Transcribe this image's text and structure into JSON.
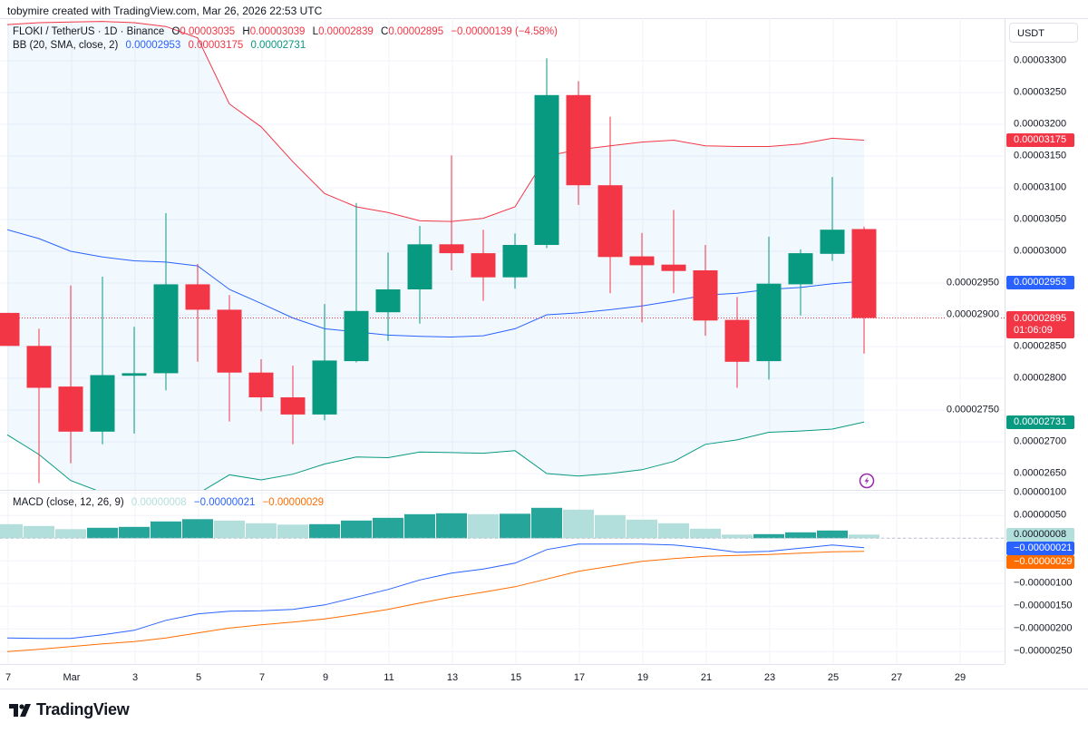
{
  "header": {
    "attribution": "tobymire created with TradingView.com, Mar 26, 2026 22:53 UTC"
  },
  "legend": {
    "symbol": "FLOKI / TetherUS · 1D · Binance",
    "o_label": "O",
    "o": "0.00003035",
    "h_label": "H",
    "h": "0.00003039",
    "l_label": "L",
    "l": "0.00002839",
    "c_label": "C",
    "c": "0.00002895",
    "change": "−0.00000139 (−4.58%)"
  },
  "bb_legend": {
    "title": "BB (20, SMA, close, 2)",
    "basis": "0.00002953",
    "upper": "0.00003175",
    "lower": "0.00002731"
  },
  "macd_legend": {
    "title": "MACD (close, 12, 26, 9)",
    "histogram": "0.00000008",
    "macd": "−0.00000021",
    "signal": "−0.00000029"
  },
  "price_axis": {
    "currency": "USDT",
    "ticks": [
      "0.00003300",
      "0.00003250",
      "0.00003200",
      "0.00003150",
      "0.00003100",
      "0.00003050",
      "0.00003000",
      "0.00002950",
      "0.00002900",
      "0.00002850",
      "0.00002800",
      "0.00002750",
      "0.00002700",
      "0.00002650"
    ],
    "badges": {
      "upper": "0.00003175",
      "basis": "0.00002953",
      "last": "0.00002895",
      "countdown": "01:06:09",
      "lower": "0.00002731"
    }
  },
  "macd_axis": {
    "ticks": [
      "0.00000100",
      "0.00000050",
      "−0.00000100",
      "−0.00000150",
      "−0.00000200",
      "−0.00000250"
    ],
    "badges": {
      "histogram": "0.00000008",
      "macd": "−0.00000021",
      "signal": "−0.00000029"
    }
  },
  "time_axis": {
    "labels": [
      "7",
      "Mar",
      "3",
      "5",
      "7",
      "9",
      "11",
      "13",
      "15",
      "17",
      "19",
      "21",
      "23",
      "25",
      "27",
      "29"
    ]
  },
  "logo": "TradingView",
  "colors": {
    "up": "#089981",
    "down": "#F23645",
    "bb_basis": "#2962FF",
    "bb_upper": "#F23645",
    "bb_lower": "#089981",
    "macd": "#2962FF",
    "signal": "#FF6D00",
    "hist_up": "#26A69A",
    "hist_fade": "#B2DFDB",
    "alert": "#9C27B0"
  },
  "chart_data": {
    "type": "candlestick",
    "symbol": "FLOKI / TetherUS",
    "interval": "1D",
    "dates": [
      "Feb 27",
      "Feb 28",
      "Mar 1",
      "Mar 2",
      "Mar 3",
      "Mar 4",
      "Mar 5",
      "Mar 6",
      "Mar 7",
      "Mar 8",
      "Mar 9",
      "Mar 10",
      "Mar 11",
      "Mar 12",
      "Mar 13",
      "Mar 14",
      "Mar 15",
      "Mar 16",
      "Mar 17",
      "Mar 18",
      "Mar 19",
      "Mar 20",
      "Mar 21",
      "Mar 22",
      "Mar 23",
      "Mar 24",
      "Mar 25",
      "Mar 26"
    ],
    "ohlc": [
      [
        2.903e-05,
        2.903e-05,
        2.851e-05,
        2.851e-05
      ],
      [
        2.851e-05,
        2.878e-05,
        2.635e-05,
        2.785e-05
      ],
      [
        2.787e-05,
        2.946e-05,
        2.666e-05,
        2.716e-05
      ],
      [
        2.716e-05,
        2.96e-05,
        2.696e-05,
        2.805e-05
      ],
      [
        2.804e-05,
        2.881e-05,
        2.713e-05,
        2.808e-05
      ],
      [
        2.808e-05,
        3.06e-05,
        2.781e-05,
        2.948e-05
      ],
      [
        2.948e-05,
        2.98e-05,
        2.826e-05,
        2.908e-05
      ],
      [
        2.908e-05,
        2.931e-05,
        2.732e-05,
        2.809e-05
      ],
      [
        2.809e-05,
        2.83e-05,
        2.748e-05,
        2.77e-05
      ],
      [
        2.77e-05,
        2.82e-05,
        2.696e-05,
        2.743e-05
      ],
      [
        2.743e-05,
        2.917e-05,
        2.734e-05,
        2.828e-05
      ],
      [
        2.827e-05,
        3.076e-05,
        2.825e-05,
        2.906e-05
      ],
      [
        2.904e-05,
        2.998e-05,
        2.859e-05,
        2.94e-05
      ],
      [
        2.94e-05,
        3.04e-05,
        2.886e-05,
        3.011e-05
      ],
      [
        3.011e-05,
        3.151e-05,
        2.97e-05,
        2.997e-05
      ],
      [
        2.997e-05,
        3.034e-05,
        2.922e-05,
        2.959e-05
      ],
      [
        2.959e-05,
        3.028e-05,
        2.941e-05,
        3.01e-05
      ],
      [
        3.01e-05,
        3.304e-05,
        3.005e-05,
        3.246e-05
      ],
      [
        3.246e-05,
        3.268e-05,
        3.073e-05,
        3.104e-05
      ],
      [
        3.104e-05,
        3.212e-05,
        2.934e-05,
        2.991e-05
      ],
      [
        2.992e-05,
        3.029e-05,
        2.888e-05,
        2.978e-05
      ],
      [
        2.979e-05,
        3.065e-05,
        2.934e-05,
        2.969e-05
      ],
      [
        2.97e-05,
        3.01e-05,
        2.867e-05,
        2.891e-05
      ],
      [
        2.892e-05,
        2.928e-05,
        2.785e-05,
        2.826e-05
      ],
      [
        2.827e-05,
        3.023e-05,
        2.798e-05,
        2.949e-05
      ],
      [
        2.948e-05,
        3.003e-05,
        2.899e-05,
        2.997e-05
      ],
      [
        2.996e-05,
        3.117e-05,
        2.985e-05,
        3.034e-05
      ],
      [
        3.035e-05,
        3.039e-05,
        2.839e-05,
        2.895e-05
      ]
    ],
    "bb_upper": [
      3.357e-05,
      3.36e-05,
      3.361e-05,
      3.362e-05,
      3.36e-05,
      3.354e-05,
      3.336e-05,
      3.232e-05,
      3.196e-05,
      3.141e-05,
      3.091e-05,
      3.07e-05,
      3.061e-05,
      3.048e-05,
      3.047e-05,
      3.052e-05,
      3.07e-05,
      3.15e-05,
      3.16e-05,
      3.166e-05,
      3.172e-05,
      3.175e-05,
      3.166e-05,
      3.165e-05,
      3.165e-05,
      3.169e-05,
      3.178e-05,
      3.175e-05
    ],
    "bb_basis": [
      3.034e-05,
      3.02e-05,
      3e-05,
      2.991e-05,
      2.985e-05,
      2.983e-05,
      2.977e-05,
      2.94e-05,
      2.918e-05,
      2.895e-05,
      2.878e-05,
      2.873e-05,
      2.868e-05,
      2.866e-05,
      2.865e-05,
      2.867e-05,
      2.878e-05,
      2.9e-05,
      2.903e-05,
      2.908e-05,
      2.914e-05,
      2.922e-05,
      2.931e-05,
      2.934e-05,
      2.94e-05,
      2.943e-05,
      2.949e-05,
      2.953e-05
    ],
    "bb_lower": [
      2.711e-05,
      2.68e-05,
      2.639e-05,
      2.62e-05,
      2.61e-05,
      2.612e-05,
      2.618e-05,
      2.648e-05,
      2.64e-05,
      2.649e-05,
      2.665e-05,
      2.676e-05,
      2.675e-05,
      2.684e-05,
      2.683e-05,
      2.682e-05,
      2.686e-05,
      2.65e-05,
      2.646e-05,
      2.65e-05,
      2.656e-05,
      2.669e-05,
      2.696e-05,
      2.703e-05,
      2.715e-05,
      2.717e-05,
      2.72e-05,
      2.731e-05
    ],
    "macd_histogram": [
      3.1e-07,
      2.7e-07,
      2e-07,
      2.3e-07,
      2.5e-07,
      3.7e-07,
      4.2e-07,
      3.9e-07,
      3.3e-07,
      3e-07,
      3.1e-07,
      3.9e-07,
      4.5e-07,
      5.3e-07,
      5.5e-07,
      5.3e-07,
      5.4e-07,
      6.7e-07,
      6.3e-07,
      5.1e-07,
      4.1e-07,
      3.3e-07,
      2.1e-07,
      8e-08,
      9e-08,
      1.3e-07,
      1.7e-07,
      8e-08
    ],
    "macd_line": [
      -2.2e-06,
      -2.21e-06,
      -2.21e-06,
      -2.13e-06,
      -2.03e-06,
      -1.81e-06,
      -1.67e-06,
      -1.61e-06,
      -1.6e-06,
      -1.57e-06,
      -1.47e-06,
      -1.3e-06,
      -1.13e-06,
      -9.2e-07,
      -7.7e-07,
      -6.8e-07,
      -5.5e-07,
      -2.5e-07,
      -1.3e-07,
      -1.3e-07,
      -1.3e-07,
      -1.5e-07,
      -2.2e-07,
      -3.1e-07,
      -2.9e-07,
      -2.2e-07,
      -1.5e-07,
      -2.1e-07
    ],
    "signal_line": [
      -2.5e-06,
      -2.45e-06,
      -2.39e-06,
      -2.33e-06,
      -2.28e-06,
      -2.2e-06,
      -2.09e-06,
      -1.98e-06,
      -1.91e-06,
      -1.85e-06,
      -1.78e-06,
      -1.68e-06,
      -1.57e-06,
      -1.43e-06,
      -1.3e-06,
      -1.19e-06,
      -1.07e-06,
      -9e-07,
      -7.3e-07,
      -6.2e-07,
      -5.1e-07,
      -4.5e-07,
      -4e-07,
      -3.8e-07,
      -3.6e-07,
      -3.3e-07,
      -3e-07,
      -2.9e-07
    ],
    "ylim": [
      2.63e-05,
      3.37e-05
    ],
    "macd_ylim": [
      -2.8e-06,
      1.05e-06
    ],
    "last_price": 2.895e-05,
    "grid": true
  }
}
